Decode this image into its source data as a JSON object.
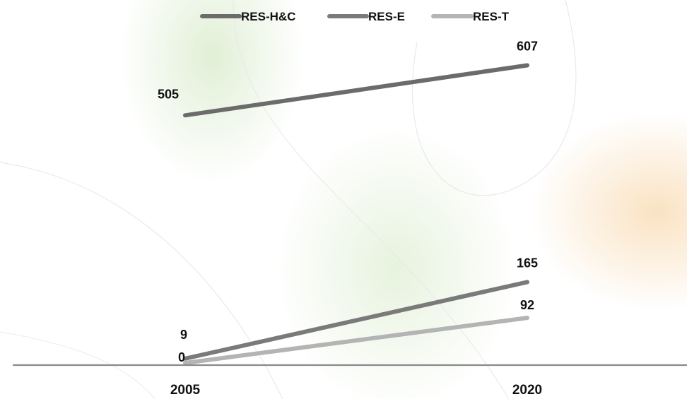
{
  "chart_data": {
    "type": "line",
    "categories": [
      "2005",
      "2020"
    ],
    "series": [
      {
        "name": "RES-H&C",
        "values": [
          505,
          607
        ],
        "color": "#6b6b6b"
      },
      {
        "name": "RES-E",
        "values": [
          9,
          165
        ],
        "color": "#7a7a7a"
      },
      {
        "name": "RES-T",
        "values": [
          0,
          92
        ],
        "color": "#b4b4b4"
      }
    ],
    "title": "",
    "xlabel": "",
    "ylabel": "",
    "ylim": [
      0,
      720
    ],
    "grid": false,
    "legend": "top-center",
    "axis_color": "#8a8a8a"
  }
}
